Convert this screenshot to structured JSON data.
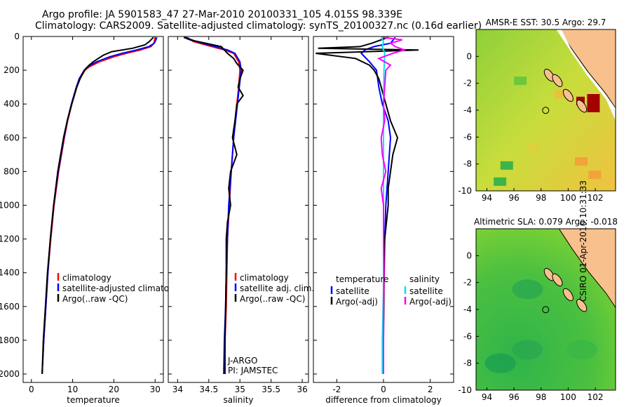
{
  "titles": {
    "line1": "Argo profile: JA 5901583_47 27-Mar-2010 20100331_105 4.015S 98.339E",
    "line2": "Climatology: CARS2009. Satellite-adjusted climatology: synTS_20100327.nc (0.16d earlier)"
  },
  "footer": "CSIRO 01-Apr-2010 10:31:33",
  "colors": {
    "climatology": "#ff0000",
    "satellite": "#0000ff",
    "argo": "#000000",
    "argo_adj": "#ff00ff",
    "salinity_sat": "#00e5ee"
  },
  "chart_data": [
    {
      "type": "line",
      "title": "",
      "xlabel": "temperature",
      "ylabel": "",
      "xlim": [
        -2,
        32
      ],
      "ylim": [
        2050,
        0
      ],
      "xticks": [
        "0",
        "10",
        "20",
        "30"
      ],
      "xtickvals": [
        0,
        10,
        20,
        30
      ],
      "yticks": [
        "0",
        "200",
        "400",
        "600",
        "800",
        "1000",
        "1200",
        "1400",
        "1600",
        "1800",
        "2000"
      ],
      "ytickvals": [
        0,
        200,
        400,
        600,
        800,
        1000,
        1200,
        1400,
        1600,
        1800,
        2000
      ],
      "legend": [
        "climatology",
        "satellite-adjusted climatology",
        "Argo(..raw -QC)"
      ],
      "series": [
        {
          "name": "climatology",
          "color": "#ff0000",
          "depth": [
            5,
            20,
            40,
            60,
            80,
            100,
            120,
            150,
            180,
            200,
            250,
            300,
            400,
            500,
            600,
            800,
            1000,
            1200,
            1400,
            1600,
            1800,
            2000
          ],
          "values": [
            30.0,
            29.9,
            29.7,
            29.0,
            26.5,
            23.0,
            20.0,
            16.5,
            14.0,
            13.0,
            11.8,
            11.0,
            9.8,
            8.8,
            8.0,
            6.6,
            5.5,
            4.7,
            4.0,
            3.5,
            3.0,
            2.6
          ]
        },
        {
          "name": "satellite-adjusted",
          "color": "#0000ff",
          "depth": [
            5,
            20,
            40,
            60,
            80,
            100,
            120,
            150,
            180,
            200,
            250,
            300,
            400,
            500,
            600,
            800,
            1000,
            1200,
            1400,
            1600,
            1800,
            2000
          ],
          "values": [
            30.4,
            30.2,
            29.8,
            28.5,
            25.5,
            22.0,
            19.0,
            15.8,
            13.6,
            12.8,
            11.6,
            10.9,
            9.7,
            8.7,
            7.9,
            6.5,
            5.4,
            4.6,
            4.0,
            3.5,
            3.0,
            2.6
          ]
        },
        {
          "name": "Argo",
          "color": "#000000",
          "depth": [
            5,
            15,
            30,
            50,
            70,
            90,
            110,
            130,
            150,
            170,
            190,
            210,
            250,
            300,
            400,
            500,
            600,
            800,
            1000,
            1200,
            1400,
            1600,
            1800,
            2000
          ],
          "values": [
            29.6,
            29.2,
            28.6,
            27.5,
            24.5,
            19.5,
            17.5,
            16.2,
            15.0,
            14.0,
            13.2,
            12.6,
            11.8,
            11.0,
            9.8,
            8.7,
            7.8,
            6.4,
            5.4,
            4.6,
            3.9,
            3.4,
            2.9,
            2.6
          ]
        }
      ]
    },
    {
      "type": "line",
      "title": "",
      "xlabel": "salinity",
      "ylabel": "",
      "xlim": [
        33.85,
        36.1
      ],
      "ylim": [
        2050,
        0
      ],
      "xticks": [
        "34",
        "34.5",
        "35",
        "35.5",
        "36"
      ],
      "xtickvals": [
        34,
        34.5,
        35,
        35.5,
        36
      ],
      "legend": [
        "climatology",
        "satellite adj. clim.",
        "Argo(..raw -QC)"
      ],
      "annotations": [
        "J-ARGO",
        "PI: JAMSTEC"
      ],
      "series": [
        {
          "name": "climatology",
          "color": "#ff0000",
          "depth": [
            5,
            30,
            60,
            80,
            100,
            150,
            200,
            300,
            400,
            600,
            800,
            1000,
            1200,
            1400,
            1600,
            1800,
            2000
          ],
          "values": [
            34.15,
            34.25,
            34.55,
            34.75,
            34.9,
            34.98,
            35.0,
            34.98,
            34.95,
            34.9,
            34.86,
            34.83,
            34.8,
            34.79,
            34.78,
            34.76,
            34.75
          ]
        },
        {
          "name": "satellite adj.",
          "color": "#0000ff",
          "depth": [
            5,
            30,
            60,
            80,
            100,
            150,
            200,
            300,
            400,
            600,
            800,
            1000,
            1200,
            1400,
            1600,
            1800,
            2000
          ],
          "values": [
            34.12,
            34.3,
            34.6,
            34.8,
            34.92,
            35.0,
            35.02,
            34.99,
            34.96,
            34.9,
            34.86,
            34.82,
            34.8,
            34.78,
            34.77,
            34.75,
            34.74
          ]
        },
        {
          "name": "Argo",
          "color": "#000000",
          "depth": [
            5,
            20,
            40,
            60,
            80,
            100,
            130,
            160,
            200,
            250,
            300,
            350,
            400,
            500,
            600,
            700,
            800,
            900,
            1000,
            1100,
            1200,
            1400,
            1600,
            1800,
            2000
          ],
          "values": [
            34.1,
            34.2,
            34.45,
            34.7,
            34.75,
            34.8,
            34.9,
            34.95,
            35.05,
            35.0,
            34.97,
            35.05,
            34.95,
            34.92,
            34.88,
            34.95,
            34.85,
            34.82,
            34.85,
            34.8,
            34.78,
            34.78,
            34.77,
            34.76,
            34.76
          ]
        }
      ]
    },
    {
      "type": "line",
      "title": "",
      "xlabel": "difference from climatology",
      "ylabel": "",
      "xlim": [
        -3.0,
        3.0
      ],
      "ylim": [
        2050,
        0
      ],
      "xticks": [
        "-2",
        "0",
        "2"
      ],
      "xtickvals": [
        -2,
        0,
        2
      ],
      "legend_groups": [
        {
          "title": "temperature",
          "items": [
            "satellite",
            "Argo(-adj)"
          ]
        },
        {
          "title": "salinity",
          "items": [
            "satellite",
            "Argo(-adj)"
          ]
        }
      ],
      "series": [
        {
          "name": "temperature satellite",
          "color": "#0000ff",
          "depth": [
            5,
            40,
            60,
            80,
            100,
            150,
            200,
            300,
            400,
            500,
            600,
            700,
            800,
            1000,
            1200,
            1500,
            1800,
            2000
          ],
          "values": [
            0.5,
            0.3,
            -0.4,
            -0.8,
            -0.95,
            -0.6,
            -0.3,
            -0.2,
            -0.05,
            0.2,
            0.3,
            0.25,
            0.2,
            0.1,
            0.05,
            0.0,
            0.0,
            0.0
          ]
        },
        {
          "name": "temperature Argo",
          "color": "#000000",
          "depth": [
            5,
            40,
            60,
            70,
            80,
            100,
            130,
            170,
            200,
            250,
            300,
            400,
            500,
            600,
            700,
            800,
            900,
            1000,
            1200,
            1500,
            1800,
            2000
          ],
          "values": [
            0.2,
            -0.5,
            -1.0,
            -2.8,
            1.5,
            -2.9,
            -1.2,
            -0.6,
            -0.4,
            -0.2,
            -0.1,
            0.1,
            0.3,
            0.6,
            0.4,
            0.3,
            0.2,
            0.2,
            0.05,
            0.02,
            0.0,
            0.0
          ]
        },
        {
          "name": "salinity satellite",
          "color": "#00e5ee",
          "depth": [
            5,
            30,
            60,
            100,
            200,
            400,
            600,
            800,
            1000,
            1200,
            1500,
            1800,
            2000
          ],
          "values": [
            -0.1,
            0.0,
            -0.05,
            0.05,
            0.02,
            0.0,
            0.0,
            0.0,
            0.0,
            0.0,
            0.0,
            -0.05,
            -0.05
          ]
        },
        {
          "name": "salinity Argo",
          "color": "#ff00ff",
          "depth": [
            5,
            20,
            40,
            60,
            80,
            100,
            130,
            170,
            200,
            300,
            400,
            500,
            600,
            700,
            800,
            900,
            1000,
            1200,
            1400,
            1600,
            1800,
            2000
          ],
          "values": [
            -0.05,
            0.8,
            0.3,
            0.5,
            0.9,
            0.4,
            -0.2,
            0.3,
            0.1,
            0.05,
            0.0,
            0.05,
            -0.1,
            -0.05,
            0.1,
            -0.1,
            0.0,
            0.0,
            0.02,
            0.0,
            0.0,
            0.0
          ]
        }
      ]
    },
    {
      "type": "heatmap",
      "title": "AMSR-E SST: 30.5 Argo: 29.7",
      "xlim": [
        93.2,
        103.5
      ],
      "ylim": [
        -10,
        2
      ],
      "xticks": [
        "94",
        "96",
        "98",
        "100",
        "102"
      ],
      "xtickvals": [
        94,
        96,
        98,
        100,
        102
      ],
      "yticks": [
        "0",
        "-2",
        "-4",
        "-6",
        "-8",
        "-10"
      ],
      "ytickvals": [
        0,
        -2,
        -4,
        -6,
        -8,
        -10
      ],
      "float_position": {
        "lon": 98.339,
        "lat": -4.015
      }
    },
    {
      "type": "heatmap",
      "title": "Altimetric SLA: 0.079 Argo: -0.018",
      "xlim": [
        93.2,
        103.5
      ],
      "ylim": [
        -10,
        2
      ],
      "xticks": [
        "94",
        "96",
        "98",
        "100",
        "102"
      ],
      "xtickvals": [
        94,
        96,
        98,
        100,
        102
      ],
      "yticks": [
        "0",
        "-2",
        "-4",
        "-6",
        "-8",
        "-10"
      ],
      "ytickvals": [
        0,
        -2,
        -4,
        -6,
        -8,
        -10
      ],
      "float_position": {
        "lon": 98.339,
        "lat": -4.015
      }
    }
  ]
}
